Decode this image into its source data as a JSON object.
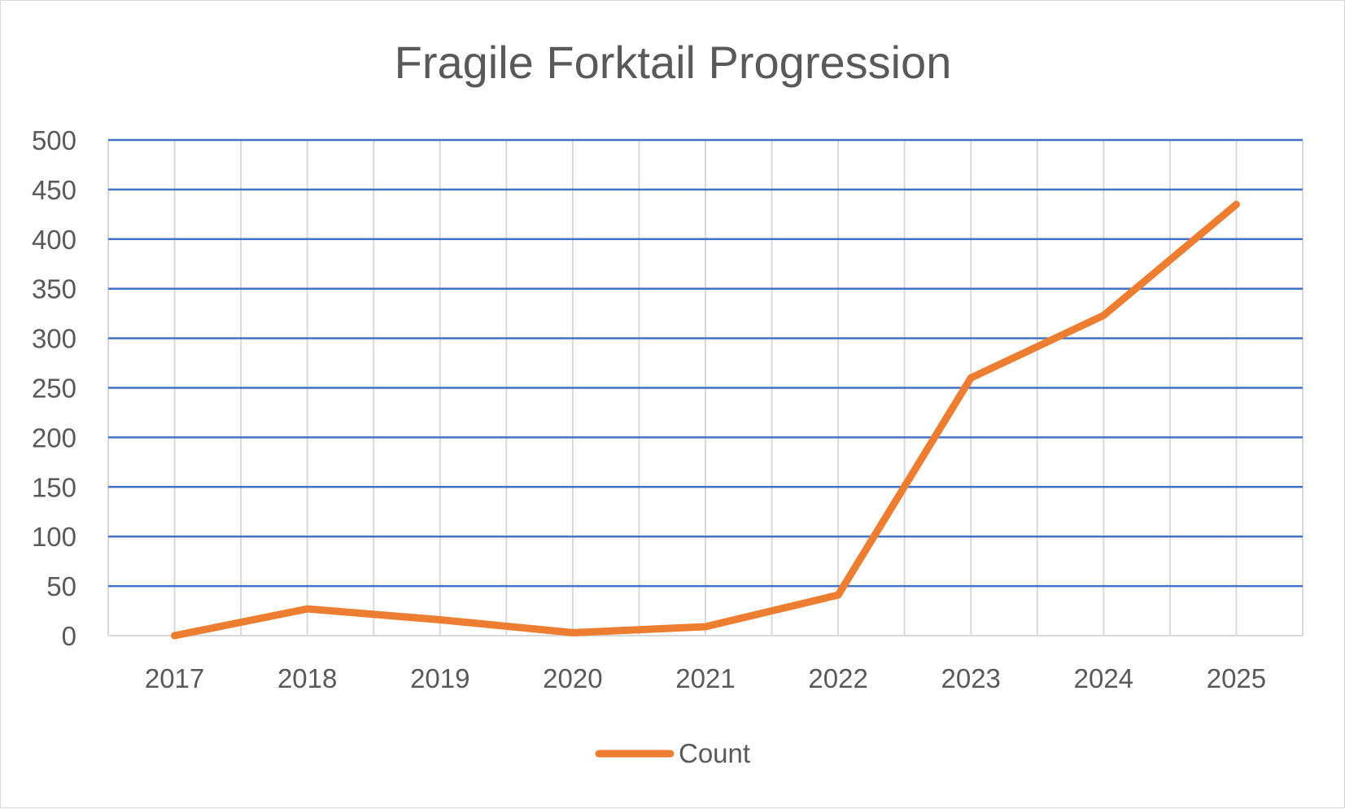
{
  "chart_data": {
    "type": "line",
    "title": "Fragile Forktail Progression",
    "xlabel": "",
    "ylabel": "",
    "categories": [
      "2017",
      "2018",
      "2019",
      "2020",
      "2021",
      "2022",
      "2023",
      "2024",
      "2025"
    ],
    "series": [
      {
        "name": "Count",
        "values": [
          0,
          27,
          16,
          3,
          9,
          41,
          260,
          323,
          435
        ]
      }
    ],
    "ylim": [
      0,
      500
    ],
    "yticks": [
      0,
      50,
      100,
      150,
      200,
      250,
      300,
      350,
      400,
      450,
      500
    ],
    "grid": true,
    "legend": "bottom",
    "colors": {
      "series": "#ed7d31",
      "gridline": "#4472c4",
      "vgrid": "#d9d9d9",
      "text": "#595959"
    }
  }
}
